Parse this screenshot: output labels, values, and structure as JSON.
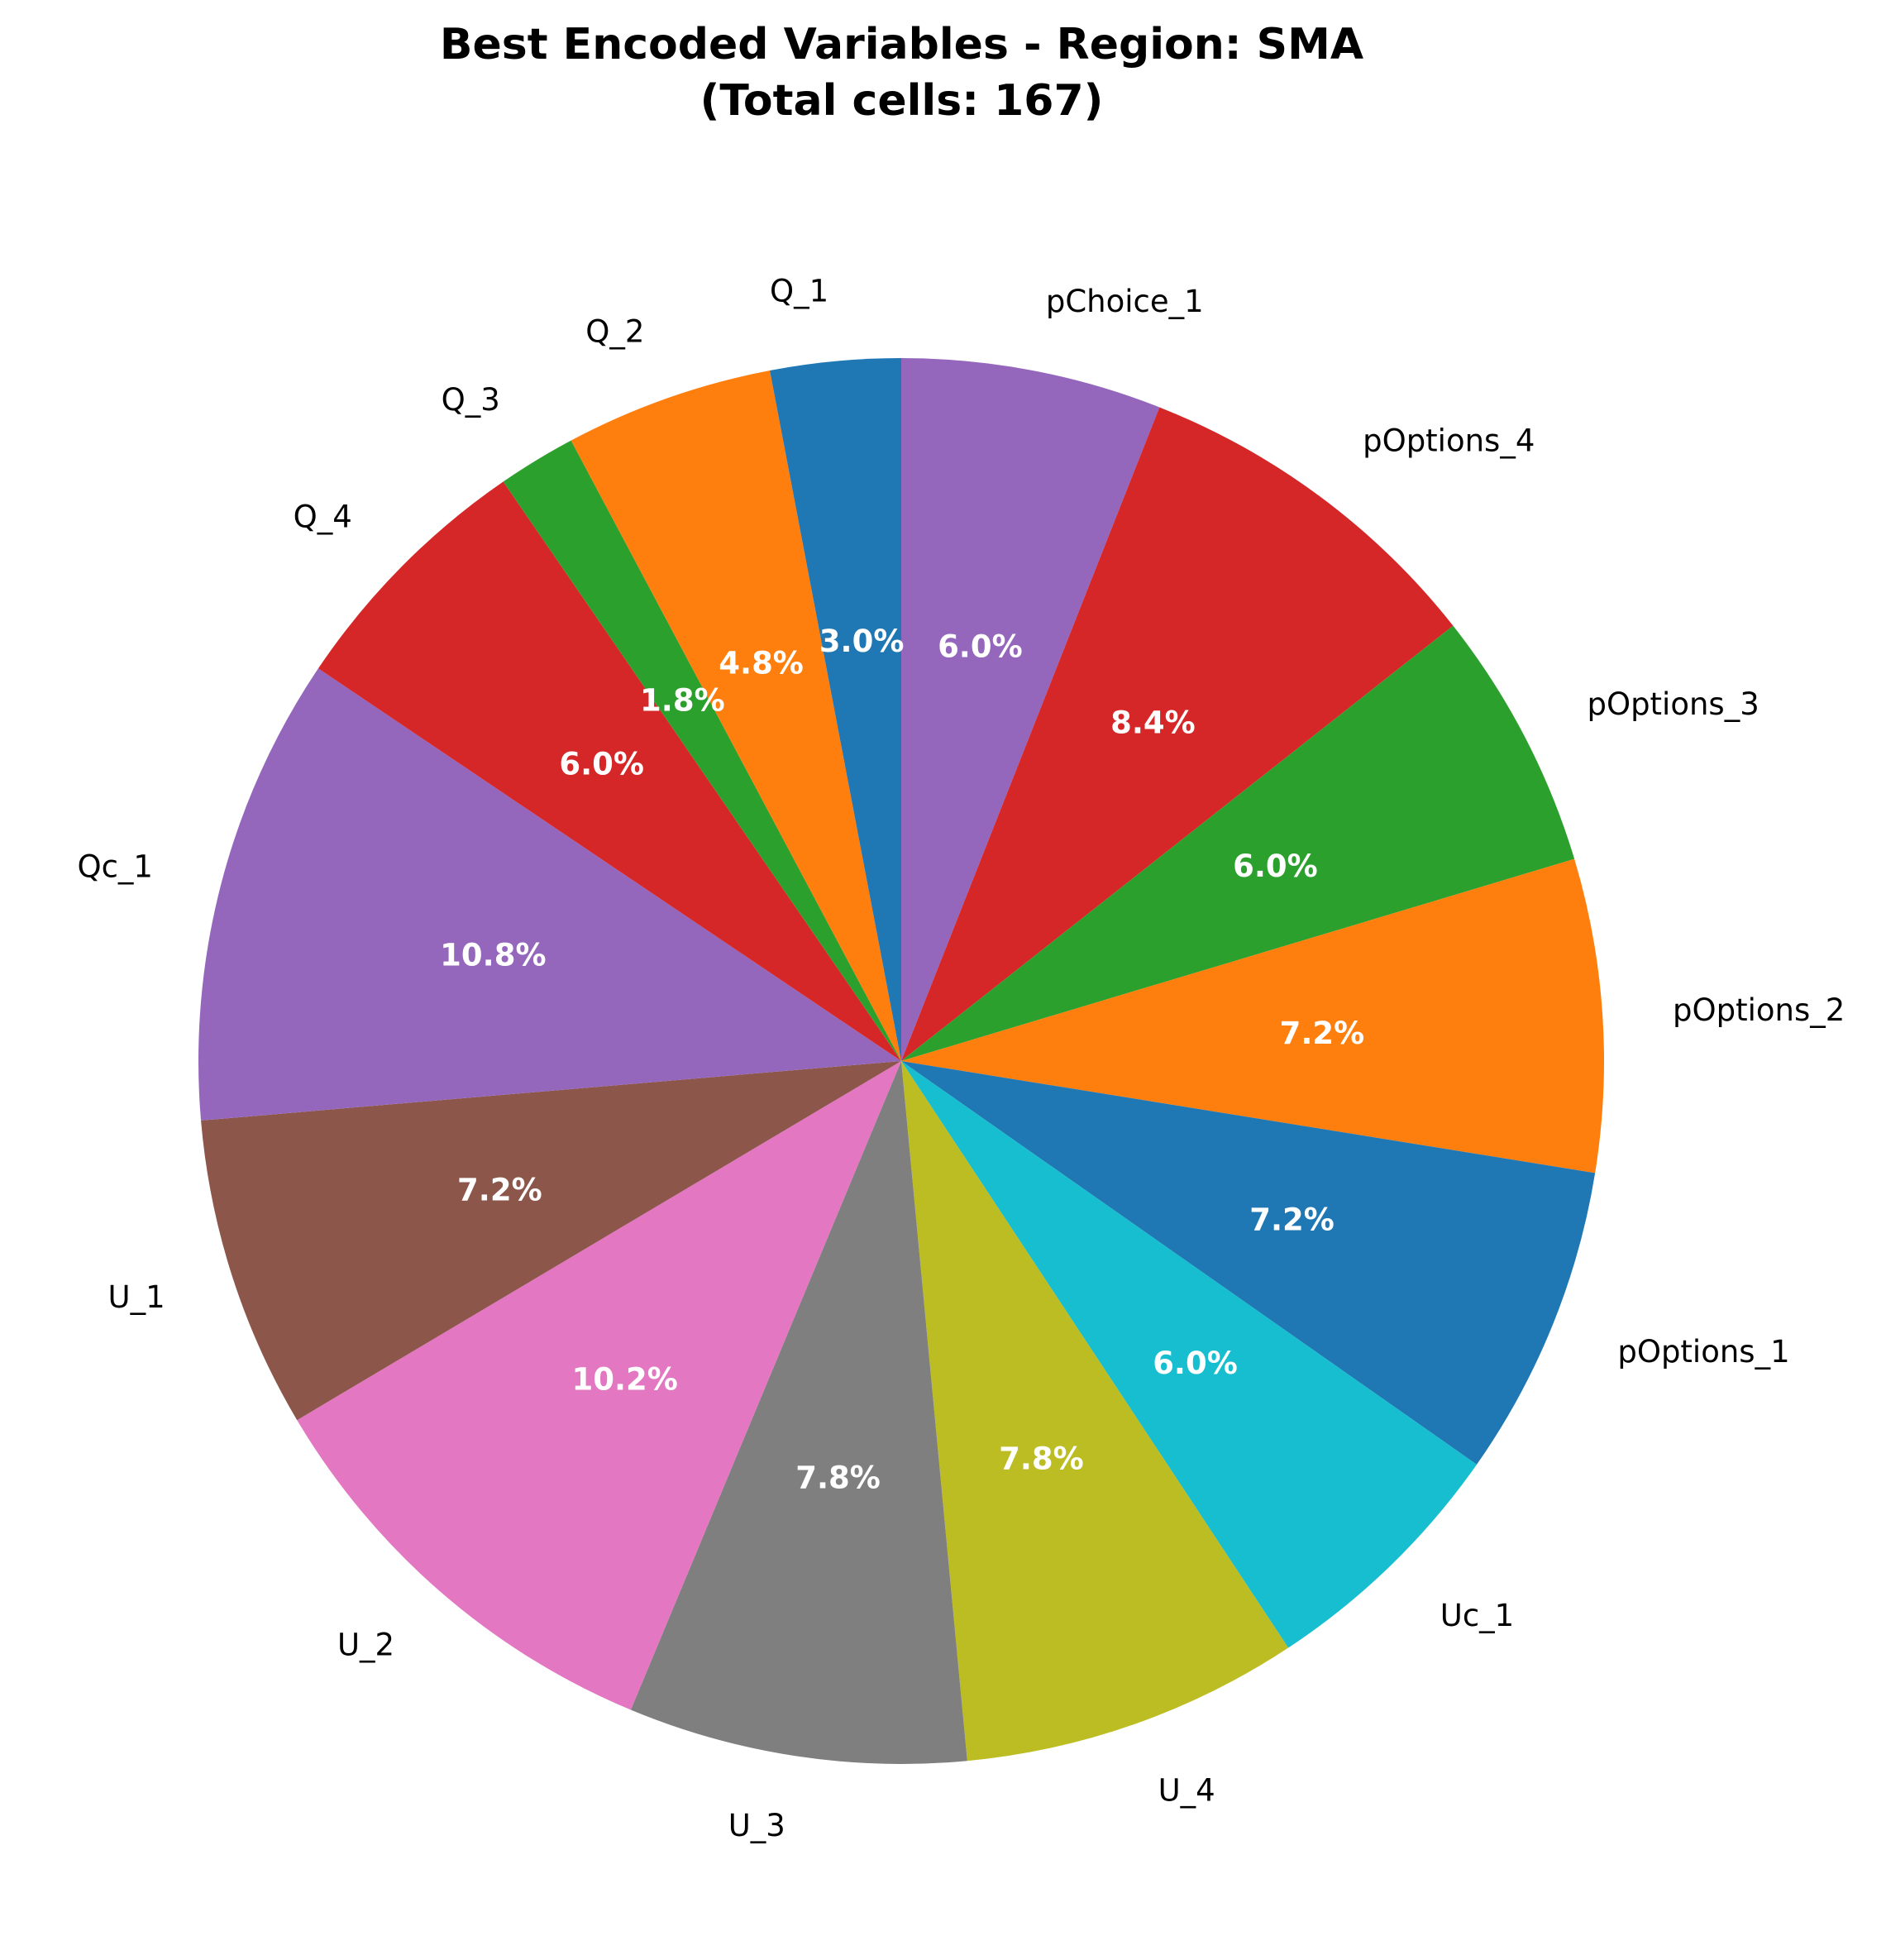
{
  "chart_data": {
    "type": "pie",
    "title": "Best Encoded Variables - Region: SMA",
    "subtitle": "(Total cells: 167)",
    "start_angle_deg": 90,
    "direction": "clockwise",
    "legend": "none",
    "slices": [
      {
        "label": "pChoice_1",
        "value": 10,
        "percent_label": "6.0%",
        "color": "#9467bd"
      },
      {
        "label": "pOptions_4",
        "value": 14,
        "percent_label": "8.4%",
        "color": "#d62728"
      },
      {
        "label": "pOptions_3",
        "value": 10,
        "percent_label": "6.0%",
        "color": "#2ca02c"
      },
      {
        "label": "pOptions_2",
        "value": 12,
        "percent_label": "7.2%",
        "color": "#ff7f0e"
      },
      {
        "label": "pOptions_1",
        "value": 12,
        "percent_label": "7.2%",
        "color": "#1f77b4"
      },
      {
        "label": "Uc_1",
        "value": 10,
        "percent_label": "6.0%",
        "color": "#17becf"
      },
      {
        "label": "U_4",
        "value": 13,
        "percent_label": "7.8%",
        "color": "#bcbd22"
      },
      {
        "label": "U_3",
        "value": 13,
        "percent_label": "7.8%",
        "color": "#7f7f7f"
      },
      {
        "label": "U_2",
        "value": 17,
        "percent_label": "10.2%",
        "color": "#e377c2"
      },
      {
        "label": "U_1",
        "value": 12,
        "percent_label": "7.2%",
        "color": "#8c564b"
      },
      {
        "label": "Qc_1",
        "value": 18,
        "percent_label": "10.8%",
        "color": "#9467bd"
      },
      {
        "label": "Q_4",
        "value": 10,
        "percent_label": "6.0%",
        "color": "#d62728"
      },
      {
        "label": "Q_3",
        "value": 3,
        "percent_label": "1.8%",
        "color": "#2ca02c"
      },
      {
        "label": "Q_2",
        "value": 8,
        "percent_label": "4.8%",
        "color": "#ff7f0e"
      },
      {
        "label": "Q_1",
        "value": 5,
        "percent_label": "3.0%",
        "color": "#1f77b4"
      }
    ]
  }
}
